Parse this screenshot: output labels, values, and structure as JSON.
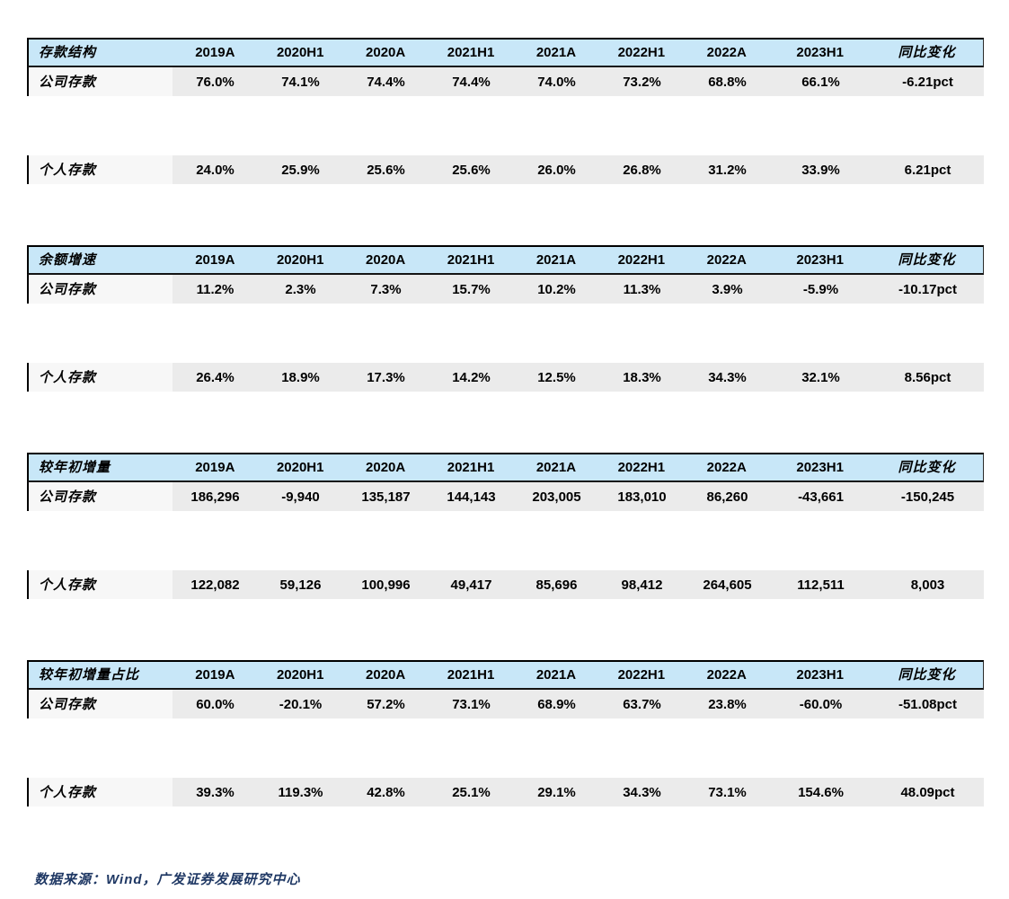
{
  "columns": [
    "2019A",
    "2020H1",
    "2020A",
    "2021H1",
    "2021A",
    "2022H1",
    "2022A",
    "2023H1",
    "同比变化"
  ],
  "sections": [
    {
      "title": "存款结构",
      "rows": [
        {
          "label": "公司存款",
          "values": [
            "76.0%",
            "74.1%",
            "74.4%",
            "74.4%",
            "74.0%",
            "73.2%",
            "68.8%",
            "66.1%",
            "-6.21pct"
          ]
        },
        {
          "label": "个人存款",
          "values": [
            "24.0%",
            "25.9%",
            "25.6%",
            "25.6%",
            "26.0%",
            "26.8%",
            "31.2%",
            "33.9%",
            "6.21pct"
          ]
        }
      ]
    },
    {
      "title": "余额增速",
      "rows": [
        {
          "label": "公司存款",
          "values": [
            "11.2%",
            "2.3%",
            "7.3%",
            "15.7%",
            "10.2%",
            "11.3%",
            "3.9%",
            "-5.9%",
            "-10.17pct"
          ]
        },
        {
          "label": "个人存款",
          "values": [
            "26.4%",
            "18.9%",
            "17.3%",
            "14.2%",
            "12.5%",
            "18.3%",
            "34.3%",
            "32.1%",
            "8.56pct"
          ]
        }
      ]
    },
    {
      "title": "较年初增量",
      "rows": [
        {
          "label": "公司存款",
          "values": [
            "186,296",
            "-9,940",
            "135,187",
            "144,143",
            "203,005",
            "183,010",
            "86,260",
            "-43,661",
            "-150,245"
          ]
        },
        {
          "label": "个人存款",
          "values": [
            "122,082",
            "59,126",
            "100,996",
            "49,417",
            "85,696",
            "98,412",
            "264,605",
            "112,511",
            "8,003"
          ]
        }
      ]
    },
    {
      "title": "较年初增量占比",
      "rows": [
        {
          "label": "公司存款",
          "values": [
            "60.0%",
            "-20.1%",
            "57.2%",
            "73.1%",
            "68.9%",
            "63.7%",
            "23.8%",
            "-60.0%",
            "-51.08pct"
          ]
        },
        {
          "label": "个人存款",
          "values": [
            "39.3%",
            "119.3%",
            "42.8%",
            "25.1%",
            "29.1%",
            "34.3%",
            "73.1%",
            "154.6%",
            "48.09pct"
          ]
        }
      ]
    }
  ],
  "footer": {
    "text": "数据来源：Wind，广发证券发展研究中心"
  },
  "colors": {
    "header_bg": "#c8e7f8",
    "row_label_bg": "#f7f7f7",
    "row_value_bg": "#ebebeb",
    "border": "#000000",
    "footer_text": "#1f3864"
  }
}
